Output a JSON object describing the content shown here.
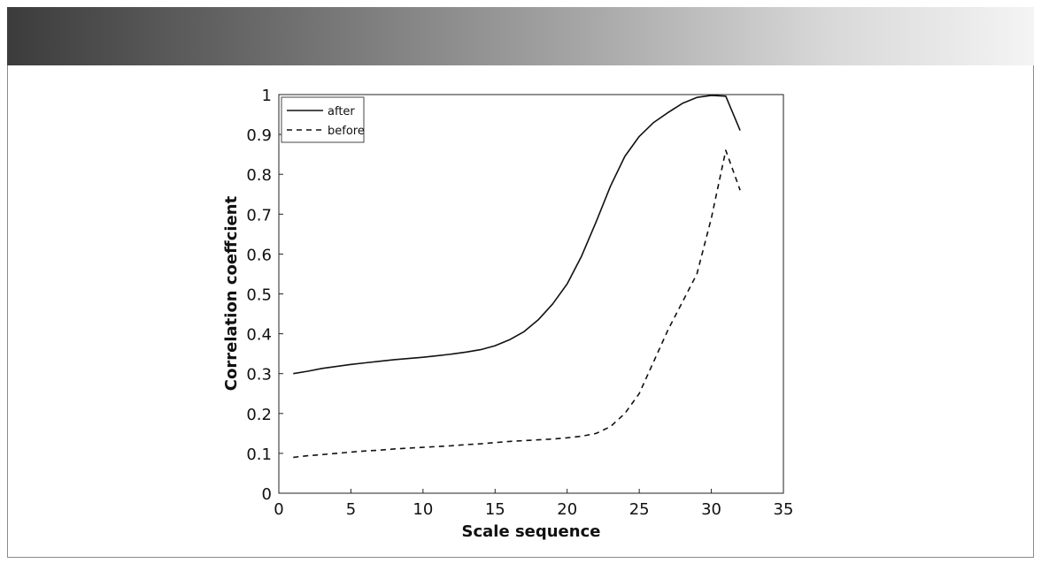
{
  "chart_data": {
    "type": "line",
    "xlabel": "Scale sequence",
    "ylabel": "Correlation coeffcient",
    "xlim": [
      0,
      35
    ],
    "ylim": [
      0,
      1
    ],
    "xticks": [
      "0",
      "5",
      "10",
      "15",
      "20",
      "25",
      "30",
      "35"
    ],
    "yticks": [
      "0",
      "0.1",
      "0.2",
      "0.3",
      "0.4",
      "0.5",
      "0.6",
      "0.7",
      "0.8",
      "0.9",
      "1"
    ],
    "grid": false,
    "legend_position": "top-left",
    "series": [
      {
        "name": "after",
        "style": "solid",
        "color": "#111111",
        "x": [
          1,
          2,
          3,
          4,
          5,
          6,
          7,
          8,
          9,
          10,
          11,
          12,
          13,
          14,
          15,
          16,
          17,
          18,
          19,
          20,
          21,
          22,
          23,
          24,
          25,
          26,
          27,
          28,
          29,
          30,
          31,
          32
        ],
        "y": [
          0.3,
          0.306,
          0.313,
          0.318,
          0.323,
          0.327,
          0.331,
          0.335,
          0.338,
          0.341,
          0.345,
          0.349,
          0.354,
          0.36,
          0.37,
          0.385,
          0.405,
          0.435,
          0.475,
          0.525,
          0.595,
          0.68,
          0.77,
          0.845,
          0.895,
          0.93,
          0.955,
          0.978,
          0.993,
          0.998,
          0.996,
          0.91
        ]
      },
      {
        "name": "before",
        "style": "dashed",
        "color": "#111111",
        "x": [
          1,
          2,
          3,
          4,
          5,
          6,
          7,
          8,
          9,
          10,
          11,
          12,
          13,
          14,
          15,
          16,
          17,
          18,
          19,
          20,
          21,
          22,
          23,
          24,
          25,
          26,
          27,
          28,
          29,
          30,
          31,
          32
        ],
        "y": [
          0.09,
          0.094,
          0.097,
          0.1,
          0.103,
          0.106,
          0.108,
          0.111,
          0.113,
          0.115,
          0.117,
          0.119,
          0.122,
          0.124,
          0.127,
          0.13,
          0.132,
          0.134,
          0.136,
          0.139,
          0.143,
          0.15,
          0.167,
          0.2,
          0.25,
          0.33,
          0.41,
          0.48,
          0.55,
          0.69,
          0.86,
          0.76
        ]
      }
    ]
  }
}
